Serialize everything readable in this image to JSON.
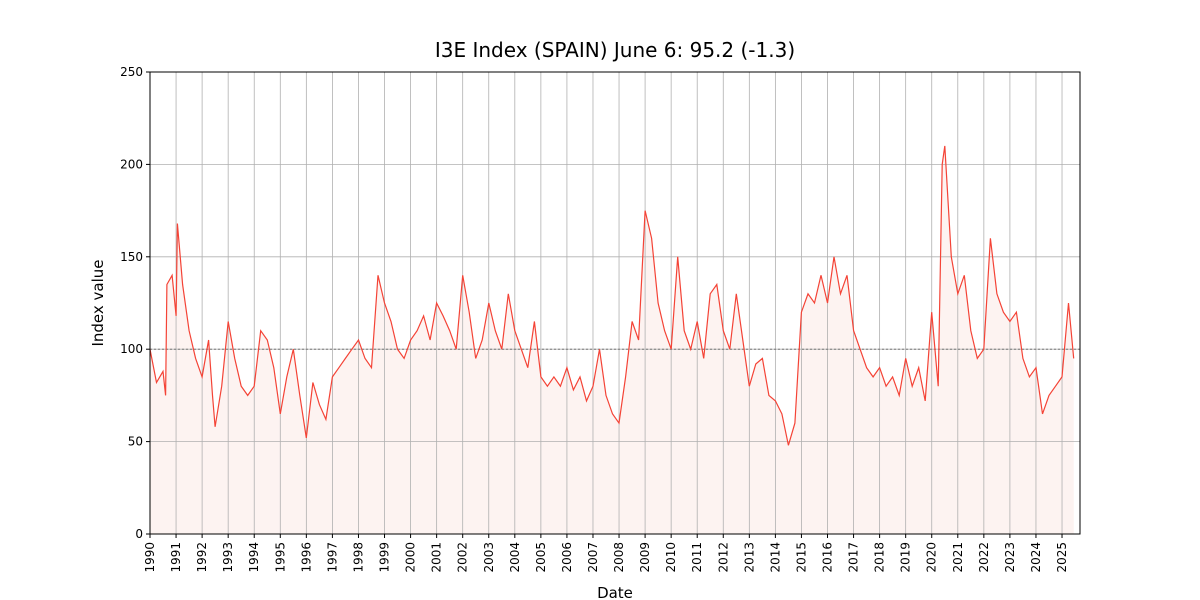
{
  "chart_data": {
    "type": "line",
    "title": "I3E Index (SPAIN) June 6: 95.2 (-1.3)",
    "x_label": "Date",
    "y_label": "Index value",
    "xlim": [
      1990,
      2025.69
    ],
    "ylim": [
      0,
      250
    ],
    "xticks": [
      1990,
      1991,
      1992,
      1993,
      1994,
      1995,
      1996,
      1997,
      1998,
      1999,
      2000,
      2001,
      2002,
      2003,
      2004,
      2005,
      2006,
      2007,
      2008,
      2009,
      2010,
      2011,
      2012,
      2013,
      2014,
      2015,
      2016,
      2017,
      2018,
      2019,
      2020,
      2021,
      2022,
      2023,
      2024,
      2025
    ],
    "yticks": [
      0,
      50,
      100,
      150,
      200,
      250
    ],
    "grid": true,
    "reference_line": 100,
    "area_fill": "#fdf3f1",
    "series": [
      {
        "name": "I3E",
        "color": "#f44336",
        "x": [
          1990,
          1990.25,
          1990.5,
          1990.6,
          1990.65,
          1990.85,
          1991,
          1991.05,
          1991.25,
          1991.5,
          1991.75,
          1992,
          1992.25,
          1992.4,
          1992.5,
          1992.75,
          1993,
          1993.25,
          1993.5,
          1993.75,
          1994,
          1994.25,
          1994.5,
          1994.75,
          1995,
          1995.25,
          1995.5,
          1995.75,
          1996,
          1996.25,
          1996.5,
          1996.75,
          1997,
          1997.25,
          1997.5,
          1997.75,
          1998,
          1998.25,
          1998.5,
          1998.75,
          1999,
          1999.25,
          1999.5,
          1999.75,
          2000,
          2000.25,
          2000.5,
          2000.75,
          2001,
          2001.25,
          2001.5,
          2001.75,
          2002,
          2002.25,
          2002.5,
          2002.75,
          2003,
          2003.25,
          2003.5,
          2003.75,
          2004,
          2004.25,
          2004.5,
          2004.75,
          2005,
          2005.25,
          2005.5,
          2005.75,
          2006,
          2006.25,
          2006.5,
          2006.75,
          2007,
          2007.25,
          2007.5,
          2007.75,
          2008,
          2008.25,
          2008.5,
          2008.75,
          2009,
          2009.25,
          2009.5,
          2009.75,
          2010,
          2010.25,
          2010.5,
          2010.75,
          2011,
          2011.25,
          2011.5,
          2011.75,
          2012,
          2012.25,
          2012.5,
          2012.75,
          2013,
          2013.25,
          2013.5,
          2013.75,
          2014,
          2014.25,
          2014.5,
          2014.75,
          2015,
          2015.25,
          2015.5,
          2015.75,
          2016,
          2016.25,
          2016.5,
          2016.75,
          2017,
          2017.25,
          2017.5,
          2017.75,
          2018,
          2018.25,
          2018.5,
          2018.75,
          2019,
          2019.25,
          2019.5,
          2019.75,
          2020,
          2020.25,
          2020.4,
          2020.5,
          2020.75,
          2021,
          2021.25,
          2021.5,
          2021.75,
          2022,
          2022.25,
          2022.5,
          2022.75,
          2023,
          2023.25,
          2023.5,
          2023.75,
          2024,
          2024.25,
          2024.5,
          2024.75,
          2025,
          2025.25,
          2025.45
        ],
        "values": [
          100,
          82,
          88,
          75,
          135,
          140,
          118,
          168,
          135,
          110,
          95,
          85,
          105,
          75,
          58,
          80,
          115,
          95,
          80,
          75,
          80,
          110,
          105,
          90,
          65,
          85,
          100,
          75,
          52,
          82,
          70,
          62,
          85,
          90,
          95,
          100,
          105,
          95,
          90,
          140,
          125,
          115,
          100,
          95,
          105,
          110,
          118,
          105,
          125,
          118,
          110,
          100,
          140,
          120,
          95,
          105,
          125,
          110,
          100,
          130,
          110,
          100,
          90,
          115,
          85,
          80,
          85,
          80,
          90,
          78,
          85,
          72,
          80,
          100,
          75,
          65,
          60,
          85,
          115,
          105,
          175,
          160,
          125,
          110,
          100,
          150,
          110,
          100,
          115,
          95,
          130,
          135,
          110,
          100,
          130,
          105,
          80,
          92,
          95,
          75,
          72,
          65,
          48,
          60,
          120,
          130,
          125,
          140,
          125,
          150,
          130,
          140,
          110,
          100,
          90,
          85,
          90,
          80,
          85,
          75,
          95,
          80,
          90,
          72,
          120,
          80,
          200,
          210,
          150,
          130,
          140,
          110,
          95,
          100,
          160,
          130,
          120,
          115,
          120,
          95,
          85,
          90,
          65,
          75,
          80,
          85,
          125,
          95
        ]
      }
    ]
  }
}
